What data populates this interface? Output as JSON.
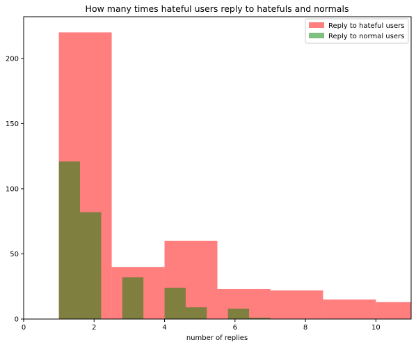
{
  "chart_data": {
    "type": "bar",
    "subtype": "histogram-overlay",
    "title": "How many times hateful users reply to hatefuls and normals",
    "xlabel": "number of replies",
    "ylabel": "",
    "xlim": [
      0,
      11
    ],
    "ylim": [
      0,
      232
    ],
    "xticks": [
      0,
      2,
      4,
      6,
      8,
      10
    ],
    "yticks": [
      0,
      50,
      100,
      150,
      200
    ],
    "grid": false,
    "legend_position": "top-right",
    "series": [
      {
        "name": "Reply to hateful users",
        "color": "#ff0000",
        "alpha": 0.5,
        "bins": [
          {
            "x0": 1.0,
            "x1": 2.5,
            "value": 220
          },
          {
            "x0": 2.5,
            "x1": 4.0,
            "value": 40
          },
          {
            "x0": 4.0,
            "x1": 5.5,
            "value": 60
          },
          {
            "x0": 5.5,
            "x1": 7.0,
            "value": 23
          },
          {
            "x0": 7.0,
            "x1": 8.5,
            "value": 22
          },
          {
            "x0": 8.5,
            "x1": 10.0,
            "value": 15
          },
          {
            "x0": 10.0,
            "x1": 11.5,
            "value": 13
          }
        ]
      },
      {
        "name": "Reply to normal users",
        "color": "#008000",
        "alpha": 0.5,
        "bins": [
          {
            "x0": 1.0,
            "x1": 1.6,
            "value": 121
          },
          {
            "x0": 1.6,
            "x1": 2.2,
            "value": 82
          },
          {
            "x0": 2.2,
            "x1": 2.8,
            "value": 0
          },
          {
            "x0": 2.8,
            "x1": 3.4,
            "value": 32
          },
          {
            "x0": 3.4,
            "x1": 4.0,
            "value": 0
          },
          {
            "x0": 4.0,
            "x1": 4.6,
            "value": 24
          },
          {
            "x0": 4.6,
            "x1": 5.2,
            "value": 9
          },
          {
            "x0": 5.2,
            "x1": 5.8,
            "value": 0
          },
          {
            "x0": 5.8,
            "x1": 6.4,
            "value": 8
          },
          {
            "x0": 6.4,
            "x1": 7.0,
            "value": 1
          }
        ]
      }
    ]
  }
}
